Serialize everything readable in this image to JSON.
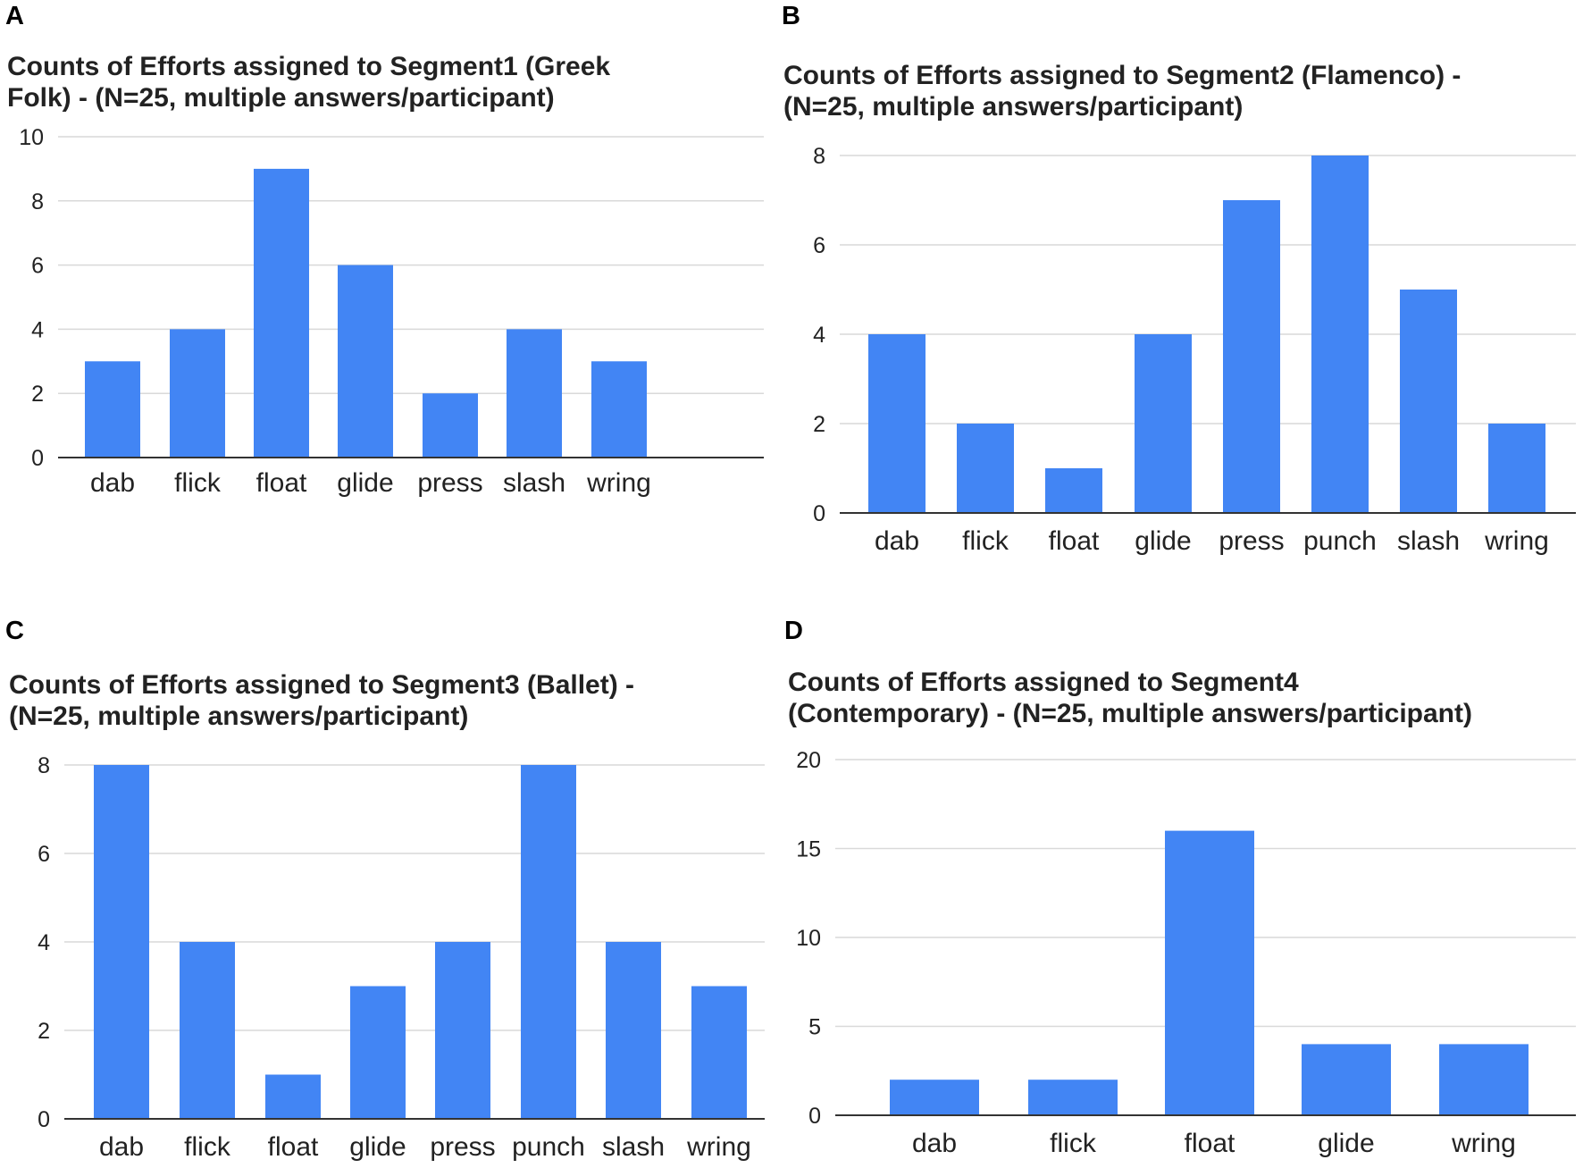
{
  "figure": {
    "panel_letters": [
      "A",
      "B",
      "C",
      "D"
    ]
  },
  "colors": {
    "bar": "#4285f4",
    "grid": "#d9d9d9",
    "axis": "#333333",
    "text": "#222222"
  },
  "chart_data": [
    {
      "type": "bar",
      "title_lines": [
        "Counts of Efforts assigned to Segment1 (Greek",
        "Folk) - (N=25, multiple answers/participant)"
      ],
      "categories": [
        "dab",
        "flick",
        "float",
        "glide",
        "press",
        "slash",
        "wring"
      ],
      "values": [
        3,
        4,
        9,
        6,
        2,
        4,
        3
      ],
      "yticks": [
        "0",
        "2",
        "4",
        "6",
        "8",
        "10"
      ],
      "ylim": [
        0,
        10
      ],
      "xlabel": "",
      "ylabel": "",
      "grid": true,
      "legend": "none"
    },
    {
      "type": "bar",
      "title_lines": [
        "Counts of Efforts assigned to Segment2 (Flamenco) -",
        "(N=25, multiple answers/participant)"
      ],
      "categories": [
        "dab",
        "flick",
        "float",
        "glide",
        "press",
        "punch",
        "slash",
        "wring"
      ],
      "values": [
        4,
        2,
        1,
        4,
        7,
        8,
        5,
        2
      ],
      "yticks": [
        "0",
        "2",
        "4",
        "6",
        "8"
      ],
      "ylim": [
        0,
        8
      ],
      "xlabel": "",
      "ylabel": "",
      "grid": true,
      "legend": "none"
    },
    {
      "type": "bar",
      "title_lines": [
        "Counts of Efforts assigned to Segment3 (Ballet) -",
        "(N=25, multiple answers/participant)"
      ],
      "categories": [
        "dab",
        "flick",
        "float",
        "glide",
        "press",
        "punch",
        "slash",
        "wring"
      ],
      "values": [
        8,
        4,
        1,
        3,
        4,
        8,
        4,
        3
      ],
      "yticks": [
        "0",
        "2",
        "4",
        "6",
        "8"
      ],
      "ylim": [
        0,
        8
      ],
      "xlabel": "",
      "ylabel": "",
      "grid": true,
      "legend": "none"
    },
    {
      "type": "bar",
      "title_lines": [
        "Counts of Efforts assigned to Segment4",
        "(Contemporary) - (N=25, multiple answers/participant)"
      ],
      "categories": [
        "dab",
        "flick",
        "float",
        "glide",
        "wring"
      ],
      "values": [
        2,
        2,
        16,
        4,
        4
      ],
      "yticks": [
        "0",
        "5",
        "10",
        "15",
        "20"
      ],
      "ylim": [
        0,
        20
      ],
      "xlabel": "",
      "ylabel": "",
      "grid": true,
      "legend": "none"
    }
  ]
}
